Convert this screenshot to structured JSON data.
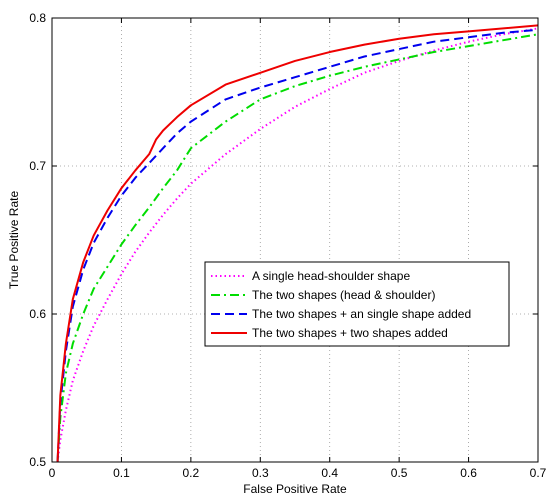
{
  "chart_data": {
    "type": "line",
    "title": "",
    "xlabel": "False Positive Rate",
    "ylabel": "True Positive Rate",
    "xlim": [
      0,
      0.7
    ],
    "ylim": [
      0.5,
      0.8
    ],
    "xticks": [
      "0",
      "0.1",
      "0.2",
      "0.3",
      "0.4",
      "0.5",
      "0.6",
      "0.7"
    ],
    "yticks": [
      "0.5",
      "0.6",
      "0.7",
      "0.8"
    ],
    "grid": true,
    "legend_position": "center-right",
    "series": [
      {
        "name": "A single head-shoulder shape",
        "color": "#ff00ff",
        "style": "dotted",
        "x": [
          0.008,
          0.012,
          0.02,
          0.03,
          0.045,
          0.06,
          0.08,
          0.1,
          0.12,
          0.14,
          0.16,
          0.18,
          0.2,
          0.25,
          0.3,
          0.35,
          0.4,
          0.45,
          0.5,
          0.55,
          0.6,
          0.65,
          0.7
        ],
        "y": [
          0.5,
          0.515,
          0.535,
          0.555,
          0.575,
          0.592,
          0.61,
          0.627,
          0.642,
          0.655,
          0.667,
          0.678,
          0.688,
          0.708,
          0.725,
          0.74,
          0.752,
          0.763,
          0.771,
          0.778,
          0.784,
          0.789,
          0.793
        ]
      },
      {
        "name": "The two shapes (head & shoulder)",
        "color": "#00dd00",
        "style": "dashdot",
        "x": [
          0.008,
          0.012,
          0.02,
          0.03,
          0.045,
          0.06,
          0.08,
          0.1,
          0.12,
          0.14,
          0.16,
          0.18,
          0.2,
          0.25,
          0.3,
          0.35,
          0.4,
          0.45,
          0.5,
          0.55,
          0.6,
          0.65,
          0.7
        ],
        "y": [
          0.5,
          0.53,
          0.56,
          0.58,
          0.6,
          0.617,
          0.632,
          0.647,
          0.66,
          0.672,
          0.685,
          0.697,
          0.712,
          0.73,
          0.745,
          0.754,
          0.761,
          0.767,
          0.772,
          0.777,
          0.781,
          0.785,
          0.789
        ]
      },
      {
        "name": "The two shapes + an single shape added",
        "color": "#0000ee",
        "style": "dashed",
        "x": [
          0.008,
          0.012,
          0.02,
          0.03,
          0.045,
          0.06,
          0.08,
          0.1,
          0.12,
          0.14,
          0.16,
          0.18,
          0.2,
          0.25,
          0.3,
          0.35,
          0.4,
          0.45,
          0.5,
          0.55,
          0.6,
          0.65,
          0.7
        ],
        "y": [
          0.5,
          0.54,
          0.575,
          0.605,
          0.63,
          0.648,
          0.665,
          0.68,
          0.692,
          0.702,
          0.712,
          0.722,
          0.73,
          0.745,
          0.753,
          0.76,
          0.767,
          0.774,
          0.779,
          0.784,
          0.787,
          0.79,
          0.792
        ]
      },
      {
        "name": "The two shapes + two shapes added",
        "color": "#ee0000",
        "style": "solid",
        "x": [
          0.008,
          0.012,
          0.02,
          0.03,
          0.045,
          0.06,
          0.08,
          0.1,
          0.12,
          0.14,
          0.15,
          0.16,
          0.18,
          0.2,
          0.25,
          0.3,
          0.35,
          0.4,
          0.45,
          0.5,
          0.55,
          0.6,
          0.65,
          0.7
        ],
        "y": [
          0.5,
          0.545,
          0.58,
          0.61,
          0.635,
          0.653,
          0.67,
          0.685,
          0.697,
          0.708,
          0.718,
          0.724,
          0.733,
          0.741,
          0.755,
          0.763,
          0.771,
          0.777,
          0.782,
          0.786,
          0.789,
          0.791,
          0.793,
          0.795
        ]
      }
    ]
  }
}
